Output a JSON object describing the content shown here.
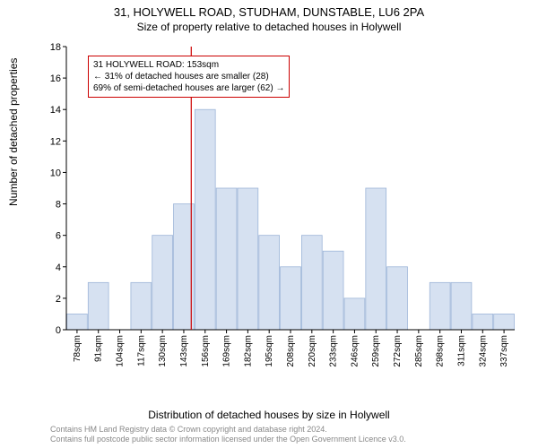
{
  "chart": {
    "type": "histogram",
    "title_main": "31, HOLYWELL ROAD, STUDHAM, DUNSTABLE, LU6 2PA",
    "title_sub": "Size of property relative to detached houses in Holywell",
    "ylabel": "Number of detached properties",
    "xlabel": "Distribution of detached houses by size in Holywell",
    "ylim": [
      0,
      18
    ],
    "ytick_step": 2,
    "yticks": [
      0,
      2,
      4,
      6,
      8,
      10,
      12,
      14,
      16,
      18
    ],
    "x_categories": [
      "78sqm",
      "91sqm",
      "104sqm",
      "117sqm",
      "130sqm",
      "143sqm",
      "156sqm",
      "169sqm",
      "182sqm",
      "195sqm",
      "208sqm",
      "220sqm",
      "233sqm",
      "246sqm",
      "259sqm",
      "272sqm",
      "285sqm",
      "298sqm",
      "311sqm",
      "324sqm",
      "337sqm"
    ],
    "values": [
      1,
      3,
      0,
      3,
      6,
      8,
      14,
      9,
      9,
      6,
      4,
      6,
      5,
      2,
      9,
      4,
      0,
      3,
      3,
      1,
      1
    ],
    "bar_fill": "#d6e1f1",
    "bar_stroke": "#9db5d8",
    "background_color": "#ffffff",
    "axis_color": "#000000",
    "marker_color": "#cc0000",
    "marker_x_index": 5.85,
    "annotation": {
      "line1": "31 HOLYWELL ROAD: 153sqm",
      "line2": "← 31% of detached houses are smaller (28)",
      "line3": "69% of semi-detached houses are larger (62) →"
    },
    "title_fontsize": 13,
    "subtitle_fontsize": 12,
    "label_fontsize": 12,
    "tick_fontsize": 11,
    "footer_line1": "Contains HM Land Registry data © Crown copyright and database right 2024.",
    "footer_line2": "Contains full postcode public sector information licensed under the Open Government Licence v3.0.",
    "footer_color": "#888888"
  }
}
